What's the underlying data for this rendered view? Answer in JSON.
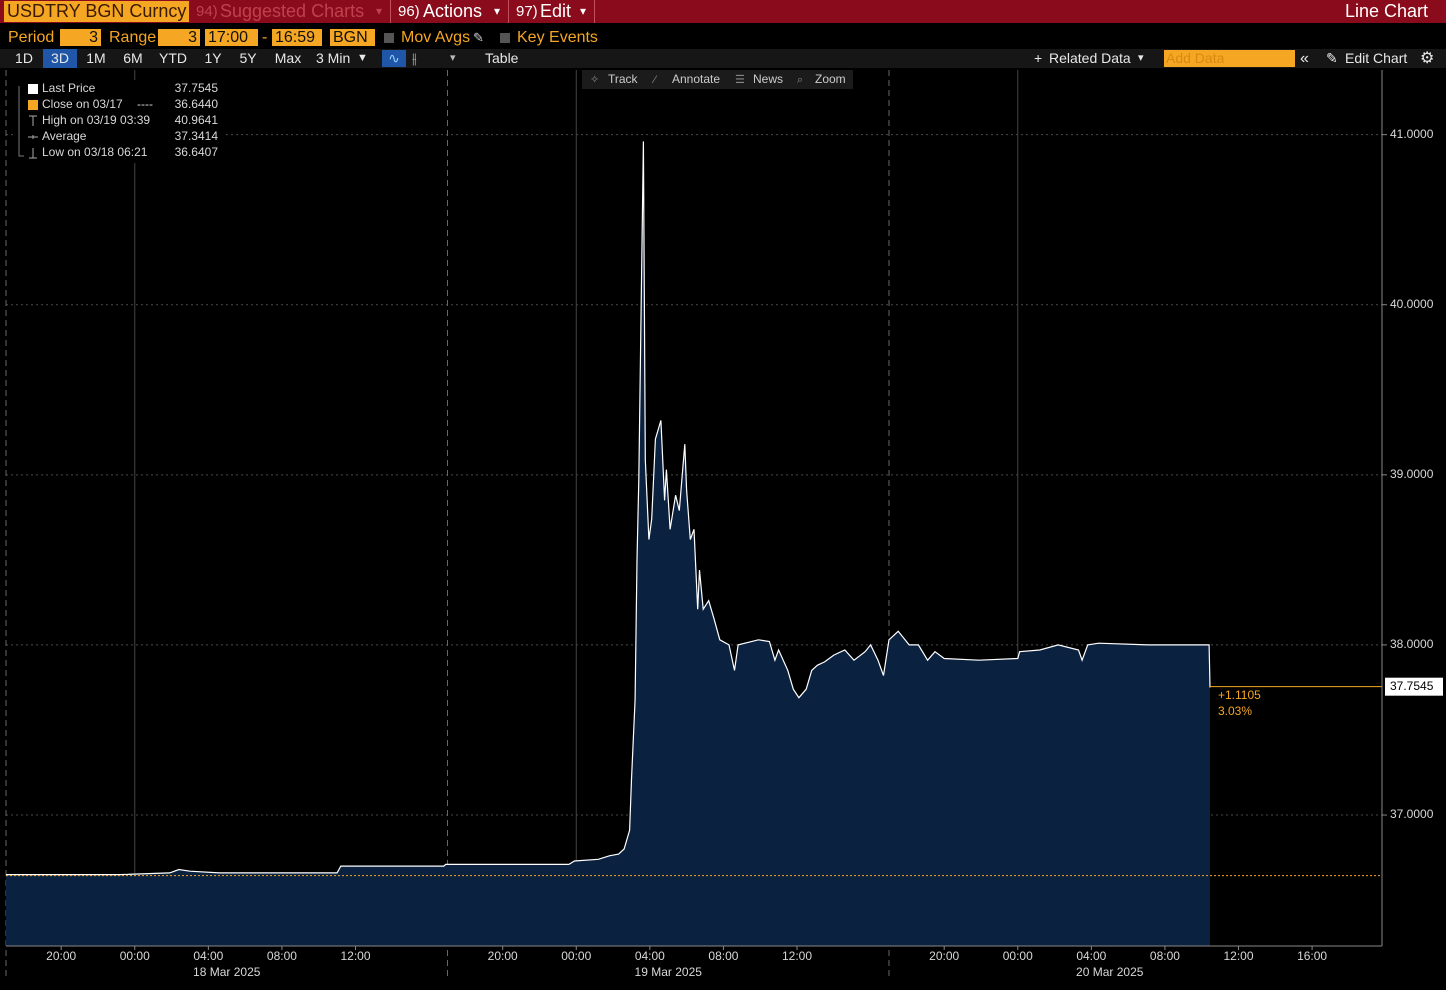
{
  "header": {
    "ticker": "USDTRY BGN Curncy",
    "menus": [
      {
        "num": "94)",
        "label": "Suggested Charts"
      },
      {
        "num": "96)",
        "label": "Actions"
      },
      {
        "num": "97)",
        "label": "Edit"
      }
    ],
    "chart_type_label": "Line Chart"
  },
  "settings": {
    "period_label": "Period",
    "period": "3",
    "range_label": "Range",
    "range": "3",
    "start": "17:00",
    "sep": "-",
    "end": "16:59",
    "source": "BGN",
    "mov_avgs": "Mov Avgs",
    "key_events": "Key Events"
  },
  "toolbar": {
    "periods": [
      "1D",
      "3D",
      "1M",
      "6M",
      "YTD",
      "1Y",
      "5Y",
      "Max"
    ],
    "active_period": "3D",
    "frequency": "3 Min",
    "table": "Table",
    "related": "Related Data",
    "add_data": "Add Data",
    "edit_chart": "Edit Chart"
  },
  "tools": [
    "Track",
    "Annotate",
    "News",
    "Zoom"
  ],
  "chart_data": {
    "type": "line",
    "series": [
      {
        "name": "Last Price",
        "color": "#ffffff",
        "fill": "#0b2140",
        "x": [
          0,
          2.9,
          6.2,
          8.9,
          9.4,
          10.0,
          11.6,
          15.9,
          18.0,
          18.2,
          23.8,
          23.9,
          30.6,
          30.9,
          32.2,
          32.8,
          33.3,
          33.6,
          33.9,
          34.0,
          34.2,
          34.3,
          34.4,
          34.65,
          34.75,
          34.95,
          35.1,
          35.3,
          35.6,
          35.8,
          35.9,
          36.1,
          36.4,
          36.6,
          36.9,
          37.0,
          37.2,
          37.4,
          37.6,
          37.7,
          37.9,
          38.2,
          38.5,
          38.8,
          39.3,
          39.6,
          39.8,
          40.9,
          41.5,
          41.8,
          42.0,
          42.5,
          42.8,
          43.1,
          43.5,
          43.8,
          44.1,
          44.5,
          45.0,
          45.6,
          46.1,
          46.7,
          47.0,
          47.4,
          47.7,
          48.0,
          48.5,
          49.1,
          49.6,
          50.1,
          50.5,
          51.0,
          52.9,
          55.0,
          55.1,
          56.2,
          57.2,
          58.3,
          58.5,
          58.8,
          59.4,
          62.1,
          65.4,
          65.45
        ],
        "values": [
          36.65,
          36.65,
          36.65,
          36.66,
          36.68,
          36.67,
          36.66,
          36.66,
          36.66,
          36.7,
          36.7,
          36.71,
          36.71,
          36.73,
          36.74,
          36.76,
          36.77,
          36.8,
          36.91,
          37.21,
          37.68,
          38.5,
          38.97,
          40.96,
          39.09,
          38.62,
          38.74,
          39.21,
          39.32,
          38.85,
          39.03,
          38.68,
          38.88,
          38.79,
          39.18,
          38.91,
          38.62,
          38.68,
          38.21,
          38.44,
          38.21,
          38.26,
          38.15,
          38.03,
          38.0,
          37.85,
          38.0,
          38.03,
          38.02,
          37.91,
          37.97,
          37.85,
          37.74,
          37.69,
          37.74,
          37.85,
          37.88,
          37.9,
          37.94,
          37.97,
          37.91,
          37.96,
          38.0,
          37.91,
          37.82,
          38.03,
          38.08,
          38.0,
          38.0,
          37.91,
          37.96,
          37.92,
          37.91,
          37.92,
          37.96,
          37.97,
          38.0,
          37.97,
          37.91,
          38.0,
          38.01,
          38.0,
          38.0,
          37.75
        ]
      }
    ],
    "xlim": [
      0,
      74.8
    ],
    "ylim": [
      36.23,
      41.38
    ],
    "yticks": [
      {
        "value": 37,
        "label": "37.0000"
      },
      {
        "value": 38,
        "label": "38.0000"
      },
      {
        "value": 39,
        "label": "39.0000"
      },
      {
        "value": 40,
        "label": "40.0000"
      },
      {
        "value": 41,
        "label": "41.0000"
      }
    ],
    "xticks": [
      {
        "value": 3,
        "label": "20:00"
      },
      {
        "value": 7,
        "label": "00:00"
      },
      {
        "value": 11,
        "label": "04:00"
      },
      {
        "value": 15,
        "label": "08:00"
      },
      {
        "value": 19,
        "label": "12:00"
      },
      {
        "value": 27,
        "label": "20:00"
      },
      {
        "value": 31,
        "label": "00:00"
      },
      {
        "value": 35,
        "label": "04:00"
      },
      {
        "value": 39,
        "label": "08:00"
      },
      {
        "value": 43,
        "label": "12:00"
      },
      {
        "value": 51,
        "label": "20:00"
      },
      {
        "value": 55,
        "label": "00:00"
      },
      {
        "value": 59,
        "label": "04:00"
      },
      {
        "value": 63,
        "label": "08:00"
      },
      {
        "value": 67,
        "label": "12:00"
      },
      {
        "value": 71,
        "label": "16:00"
      }
    ],
    "xgrid": [
      7,
      31,
      55
    ],
    "session_breaks": [
      0,
      24,
      48
    ],
    "date_labels": [
      {
        "value": 12,
        "label": "18 Mar 2025"
      },
      {
        "value": 36,
        "label": "19 Mar 2025"
      },
      {
        "value": 60,
        "label": "20 Mar 2025"
      }
    ],
    "last_price": {
      "value": 37.7545,
      "label": "37.7545",
      "color": "#f5a623"
    },
    "close": {
      "name": "Close on 03/17",
      "marker": "----",
      "value": 36.644,
      "label": "36.6440",
      "color": "#f5a623"
    },
    "stats": [
      {
        "name": "High on 03/19 03:39",
        "label": "40.9641"
      },
      {
        "name": "Average",
        "label": "37.3414"
      },
      {
        "name": "Low on 03/18 06:21",
        "label": "36.6407"
      }
    ],
    "change": {
      "label": "+1.1105",
      "percent": "3.03%"
    },
    "grid": true,
    "legend_position": "upper left"
  }
}
